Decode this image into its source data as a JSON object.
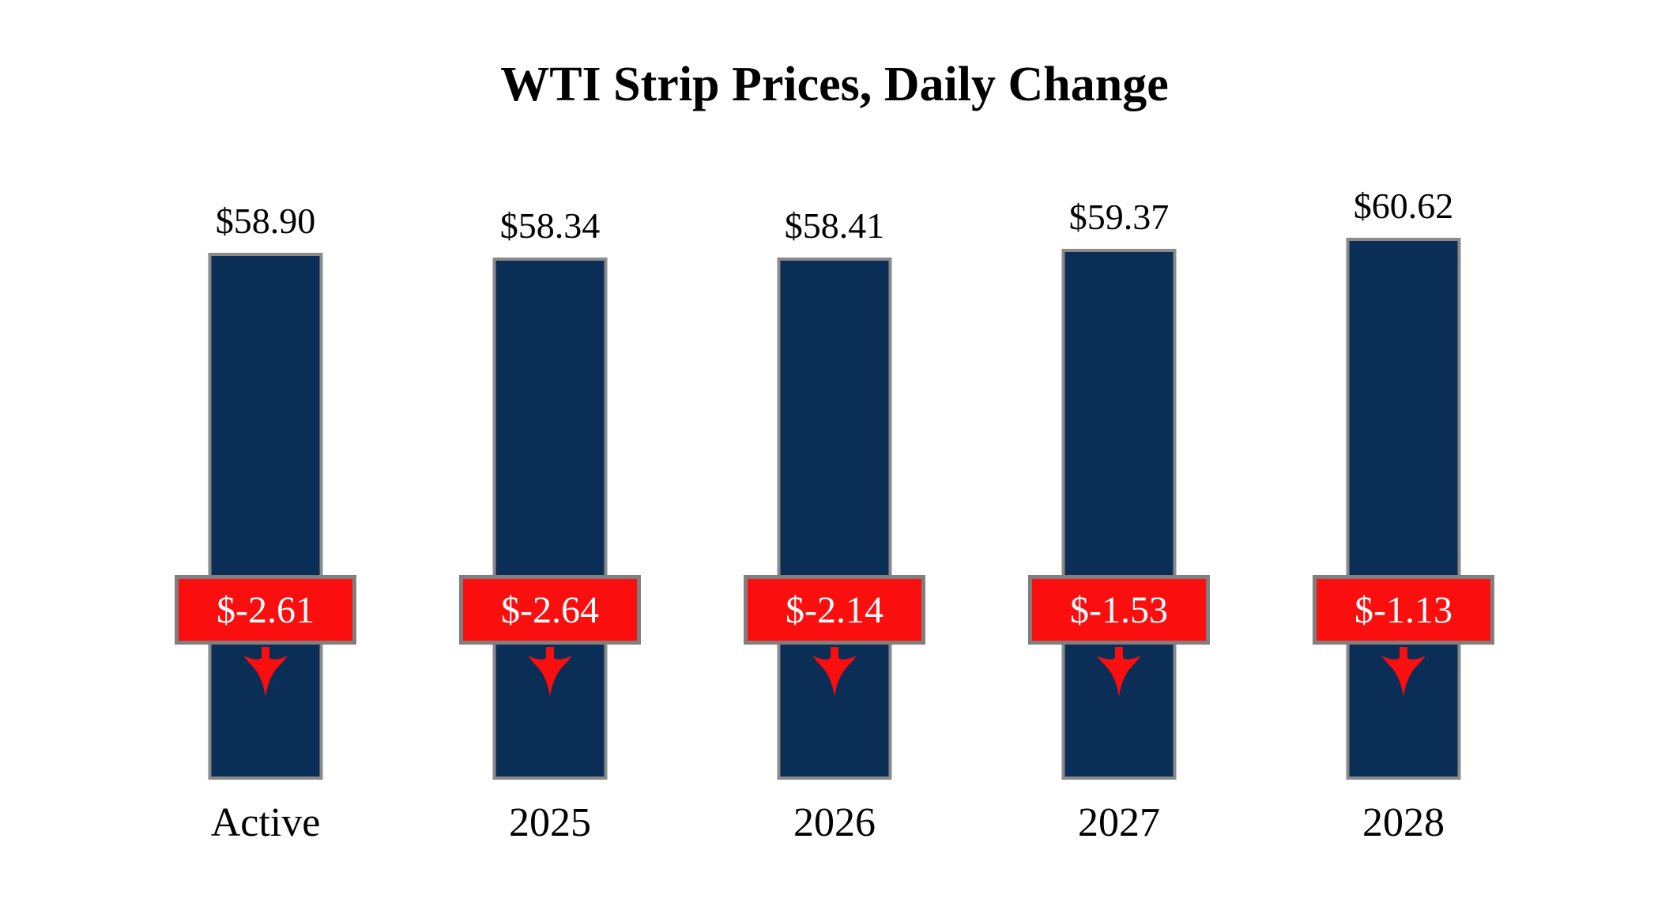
{
  "title": "WTI Strip Prices, Daily Change",
  "chart_data": {
    "type": "bar",
    "title": "WTI Strip Prices, Daily Change",
    "categories": [
      "Active",
      "2025",
      "2026",
      "2027",
      "2028"
    ],
    "series": [
      {
        "name": "WTI Strip Price",
        "values": [
          58.9,
          58.34,
          58.41,
          59.37,
          60.62
        ],
        "labels": [
          "$58.90",
          "$58.34",
          "$58.41",
          "$59.37",
          "$60.62"
        ]
      },
      {
        "name": "Daily Change",
        "values": [
          -2.61,
          -2.64,
          -2.14,
          -1.53,
          -1.13
        ],
        "labels": [
          "$-2.61",
          "$-2.64",
          "$-2.14",
          "$-1.53",
          "$-1.13"
        ]
      }
    ],
    "xlabel": "",
    "ylabel": "",
    "legend_position": "none",
    "grid": false,
    "axes_shown": false,
    "bar_color": "#0b2e57",
    "bar_border_color": "#8a8a8a",
    "badge_color": "#fb0e0e",
    "badge_border_color": "#7f7f7f",
    "badge_text_color": "#ffffff",
    "arrow_color": "#fb0e0e",
    "arrow_direction": "down"
  }
}
